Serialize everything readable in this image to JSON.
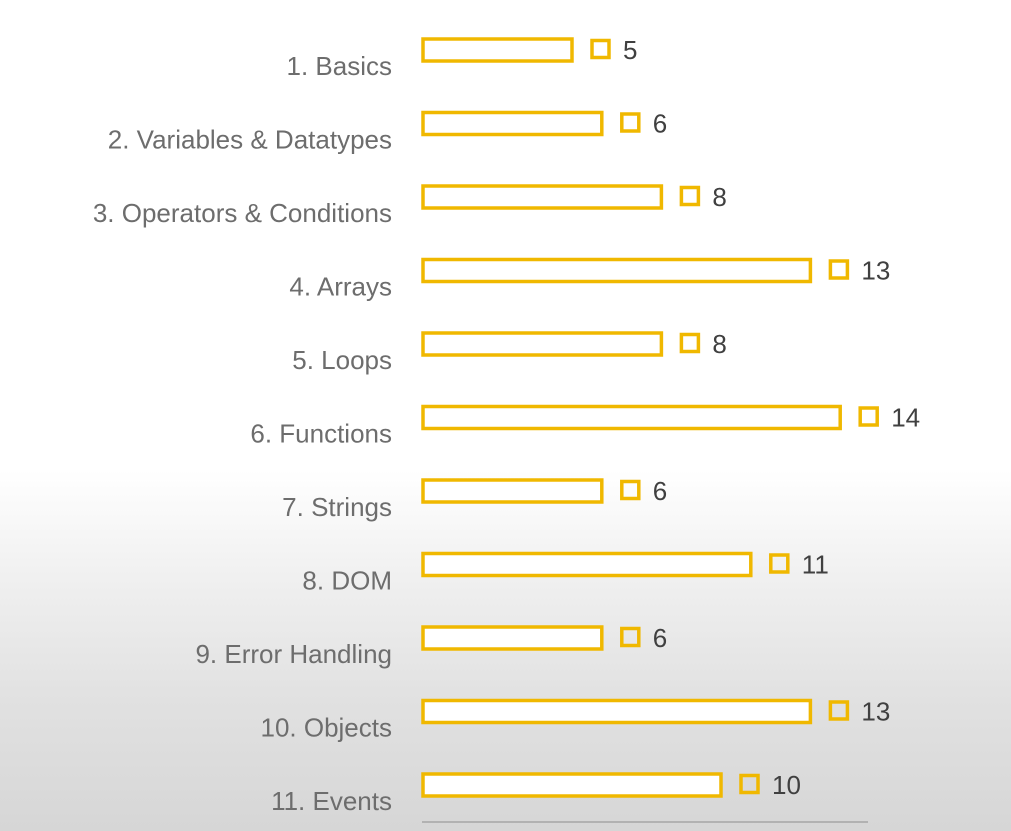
{
  "chart_data": {
    "type": "bar",
    "orientation": "horizontal",
    "categories": [
      "1. Basics",
      "2. Variables & Datatypes",
      "3. Operators & Conditions",
      "4. Arrays",
      "5. Loops",
      "6. Functions",
      "7. Strings",
      "8. DOM",
      "9. Error Handling",
      "10. Objects",
      "11. Events"
    ],
    "values": [
      5,
      6,
      8,
      13,
      8,
      14,
      6,
      11,
      6,
      13,
      10
    ],
    "title": "",
    "xlabel": "",
    "ylabel": "",
    "xlim": [
      0,
      15
    ],
    "grid": false,
    "legend": "none",
    "data_labels": true,
    "colors": {
      "bar_outline": "#f0b800",
      "bar_fill": "#ffffff",
      "category_text": "#6d6d6d",
      "value_text": "#404040",
      "axis_line": "#a6a6a6"
    }
  }
}
